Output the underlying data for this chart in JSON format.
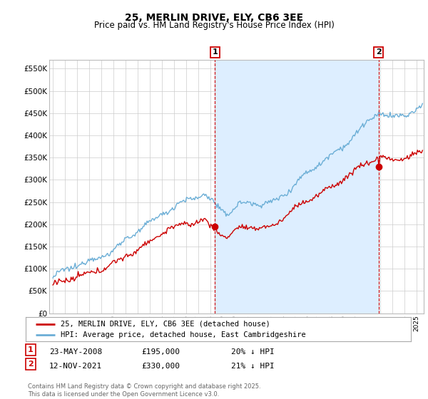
{
  "title": "25, MERLIN DRIVE, ELY, CB6 3EE",
  "subtitle": "Price paid vs. HM Land Registry's House Price Index (HPI)",
  "ylabel_ticks": [
    "£0",
    "£50K",
    "£100K",
    "£150K",
    "£200K",
    "£250K",
    "£300K",
    "£350K",
    "£400K",
    "£450K",
    "£500K",
    "£550K"
  ],
  "ylabel_values": [
    0,
    50000,
    100000,
    150000,
    200000,
    250000,
    300000,
    350000,
    400000,
    450000,
    500000,
    550000
  ],
  "ylim": [
    0,
    570000
  ],
  "xlim_left": 1994.7,
  "xlim_right": 2025.6,
  "sale1_x": 2008.38,
  "sale1_y": 195000,
  "sale2_x": 2021.87,
  "sale2_y": 330000,
  "hpi_color": "#6baed6",
  "price_color": "#cc0000",
  "shade_color": "#ddeeff",
  "grid_color": "#cccccc",
  "background_color": "#ffffff",
  "legend_label1": "25, MERLIN DRIVE, ELY, CB6 3EE (detached house)",
  "legend_label2": "HPI: Average price, detached house, East Cambridgeshire",
  "footnote": "Contains HM Land Registry data © Crown copyright and database right 2025.\nThis data is licensed under the Open Government Licence v3.0."
}
